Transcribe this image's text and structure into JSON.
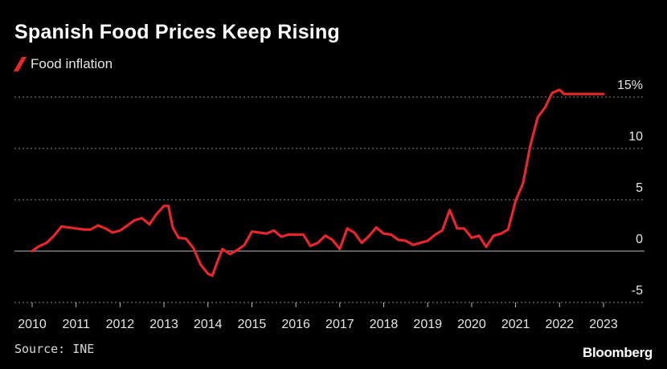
{
  "title": "Spanish Food Prices Keep Rising",
  "source": "Source: INE",
  "brand": "Bloomberg",
  "colors": {
    "series": "#e8272d",
    "grid": "#8c8c8c",
    "zero": "#bdbdbd",
    "text": "#e6e6e6"
  },
  "chart_data": {
    "type": "line",
    "title": "Spanish Food Prices Keep Rising",
    "xlabel": "",
    "ylabel": "",
    "xlim": [
      2010,
      2023.5
    ],
    "ylim": [
      -6,
      16
    ],
    "y_ticks": [
      {
        "value": 15,
        "label": "15%"
      },
      {
        "value": 10,
        "label": "10"
      },
      {
        "value": 5,
        "label": "5"
      },
      {
        "value": 0,
        "label": "0"
      },
      {
        "value": -5,
        "label": "-5"
      }
    ],
    "x_ticks": [
      {
        "value": 2010,
        "label": "2010"
      },
      {
        "value": 2011,
        "label": "2011"
      },
      {
        "value": 2012,
        "label": "2012"
      },
      {
        "value": 2013,
        "label": "2013"
      },
      {
        "value": 2014,
        "label": "2014"
      },
      {
        "value": 2015,
        "label": "2015"
      },
      {
        "value": 2016,
        "label": "2016"
      },
      {
        "value": 2017,
        "label": "2017"
      },
      {
        "value": 2018,
        "label": "2018"
      },
      {
        "value": 2019,
        "label": "2019"
      },
      {
        "value": 2020,
        "label": "2020"
      },
      {
        "value": 2021,
        "label": "2021"
      },
      {
        "value": 2022,
        "label": "2022"
      },
      {
        "value": 2023,
        "label": "2023"
      }
    ],
    "grid": true,
    "legend_position": "top-left",
    "series": [
      {
        "name": "Food inflation",
        "color": "#e8272d",
        "x": [
          2010.0,
          2010.17,
          2010.33,
          2010.5,
          2010.67,
          2010.83,
          2011.0,
          2011.17,
          2011.33,
          2011.5,
          2011.67,
          2011.83,
          2012.0,
          2012.17,
          2012.33,
          2012.5,
          2012.67,
          2012.83,
          2013.0,
          2013.1,
          2013.2,
          2013.33,
          2013.5,
          2013.67,
          2013.83,
          2014.0,
          2014.1,
          2014.2,
          2014.33,
          2014.5,
          2014.67,
          2014.83,
          2015.0,
          2015.17,
          2015.33,
          2015.5,
          2015.67,
          2015.83,
          2016.0,
          2016.17,
          2016.33,
          2016.5,
          2016.67,
          2016.83,
          2017.0,
          2017.17,
          2017.33,
          2017.5,
          2017.67,
          2017.83,
          2018.0,
          2018.17,
          2018.33,
          2018.5,
          2018.67,
          2018.83,
          2019.0,
          2019.17,
          2019.33,
          2019.5,
          2019.67,
          2019.83,
          2020.0,
          2020.17,
          2020.33,
          2020.5,
          2020.67,
          2020.83,
          2021.0,
          2021.17,
          2021.33,
          2021.5,
          2021.67,
          2021.83,
          2022.0,
          2022.1,
          2022.2,
          2022.33,
          2022.5,
          2022.67,
          2022.83,
          2023.0
        ],
        "y": [
          0.0,
          0.5,
          0.8,
          1.5,
          2.4,
          2.3,
          2.2,
          2.1,
          2.1,
          2.5,
          2.2,
          1.8,
          2.0,
          2.5,
          3.0,
          3.2,
          2.6,
          3.6,
          4.4,
          4.4,
          2.3,
          1.3,
          1.2,
          0.3,
          -1.3,
          -2.2,
          -2.4,
          -1.2,
          0.2,
          -0.3,
          0.1,
          0.6,
          1.9,
          1.8,
          1.7,
          2.0,
          1.4,
          1.6,
          1.6,
          1.6,
          0.5,
          0.8,
          1.5,
          1.1,
          0.2,
          2.2,
          1.8,
          0.8,
          1.5,
          2.3,
          1.7,
          1.6,
          1.1,
          1.0,
          0.6,
          0.8,
          1.0,
          1.6,
          2.0,
          4.0,
          2.2,
          2.2,
          1.3,
          1.5,
          0.4,
          1.5,
          1.7,
          2.1,
          4.9,
          6.6,
          10.2,
          13.0,
          14.0,
          15.4,
          15.7,
          15.3,
          15.3,
          15.3,
          15.3,
          15.3,
          15.3,
          15.3
        ]
      }
    ]
  }
}
